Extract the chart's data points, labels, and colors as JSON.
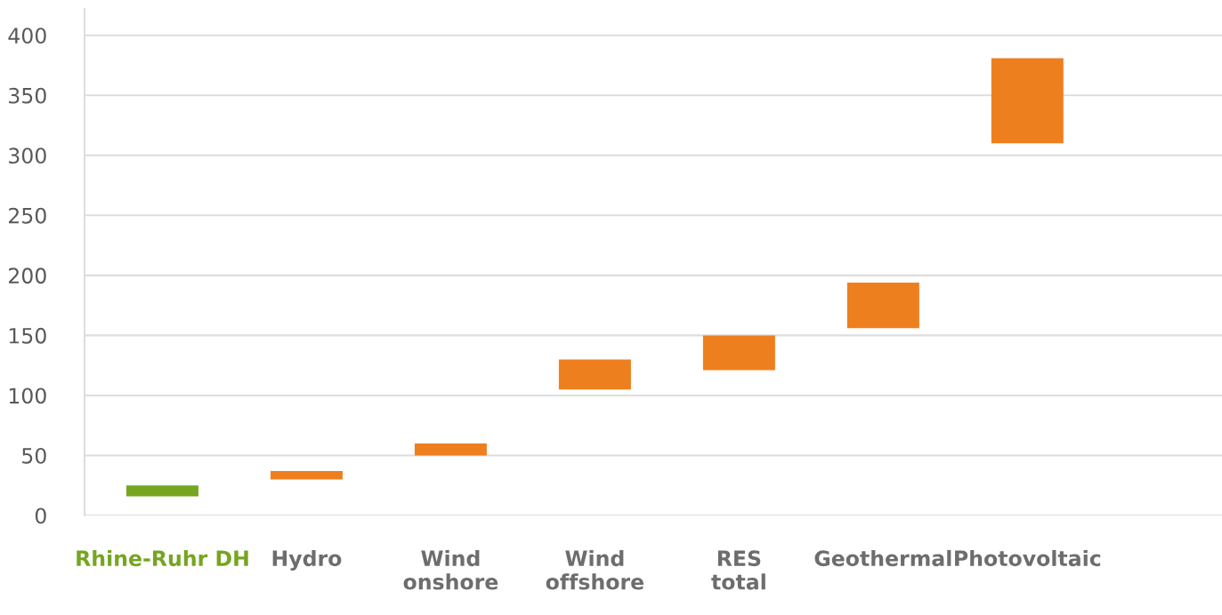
{
  "chart_data": {
    "type": "bar",
    "categories": [
      "Rhine-Ruhr DH",
      "Hydro",
      "Wind\nonshore",
      "Wind\noffshore",
      "RES\ntotal",
      "Geothermal",
      "Photovoltaic"
    ],
    "base": [
      16,
      30,
      50,
      105,
      121,
      156,
      310
    ],
    "values": [
      9,
      7,
      10,
      25,
      29,
      38,
      71
    ],
    "colors": [
      "#76a520",
      "#ee7f1f",
      "#ee7f1f",
      "#ee7f1f",
      "#ee7f1f",
      "#ee7f1f",
      "#ee7f1f"
    ],
    "ylim": [
      0,
      422
    ],
    "yticks": [
      0,
      50,
      100,
      150,
      200,
      250,
      300,
      350,
      400
    ],
    "grid": "y",
    "legend": false
  }
}
